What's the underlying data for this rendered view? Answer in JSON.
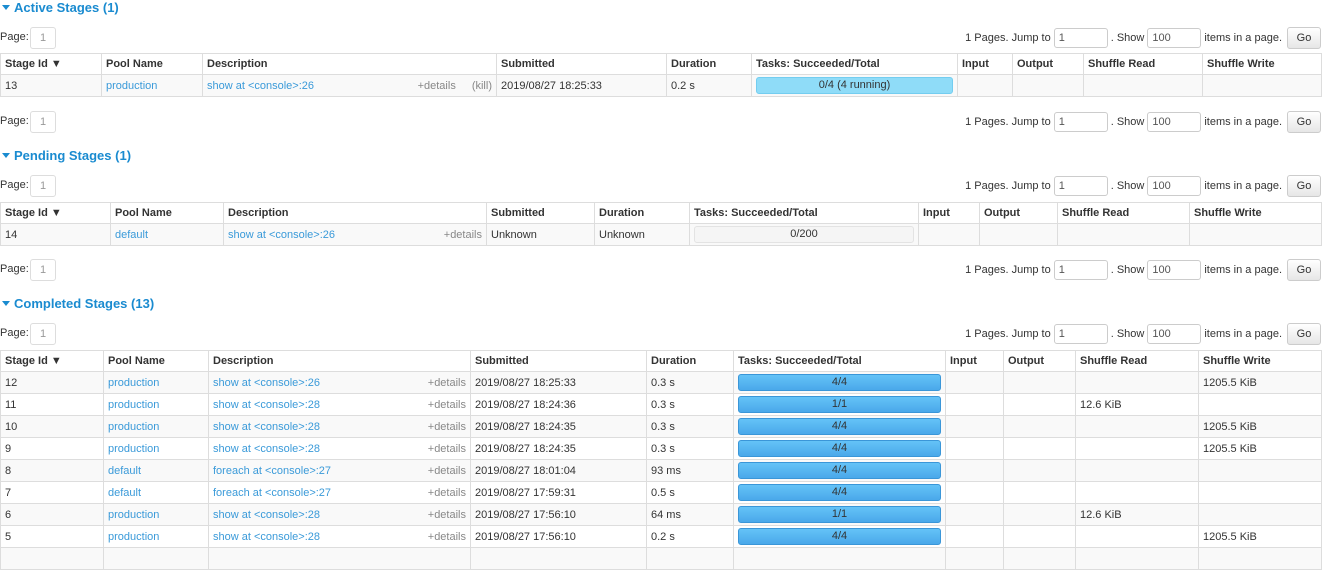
{
  "colors": {
    "accent": "#1a8bd0",
    "link": "#3a9ad9",
    "bar_complete": "#4aa8ea",
    "bar_running": "#8fdcf8"
  },
  "pager": {
    "page_label": "Page:",
    "page": "1",
    "pages_text": "1 Pages. Jump to",
    "jump_value": "1",
    "show_label": ". Show",
    "show_value": "100",
    "items_label": "items in a page.",
    "go_label": "Go"
  },
  "columns": [
    "Stage Id ▼",
    "Pool Name",
    "Description",
    "Submitted",
    "Duration",
    "Tasks: Succeeded/Total",
    "Input",
    "Output",
    "Shuffle Read",
    "Shuffle Write"
  ],
  "details_label": "+details",
  "kill_label": "(kill)",
  "sections": [
    {
      "title": "Active Stages (1)",
      "rows": [
        {
          "id": "13",
          "pool": "production",
          "desc": "show at <console>:26",
          "kill": true,
          "submitted": "2019/08/27 18:25:33",
          "duration": "0.2 s",
          "tasks": "0/4 (4 running)",
          "progress": 0,
          "status": "running",
          "input": "",
          "output": "",
          "shuffle_read": "",
          "shuffle_write": ""
        }
      ]
    },
    {
      "title": "Pending Stages (1)",
      "rows": [
        {
          "id": "14",
          "pool": "default",
          "desc": "show at <console>:26",
          "submitted": "Unknown",
          "duration": "Unknown",
          "tasks": "0/200",
          "progress": 0,
          "status": "pending",
          "input": "",
          "output": "",
          "shuffle_read": "",
          "shuffle_write": ""
        }
      ]
    },
    {
      "title": "Completed Stages (13)",
      "rows": [
        {
          "id": "12",
          "pool": "production",
          "desc": "show at <console>:26",
          "submitted": "2019/08/27 18:25:33",
          "duration": "0.3 s",
          "tasks": "4/4",
          "progress": 1,
          "status": "complete",
          "input": "",
          "output": "",
          "shuffle_read": "",
          "shuffle_write": "1205.5 KiB"
        },
        {
          "id": "11",
          "pool": "production",
          "desc": "show at <console>:28",
          "submitted": "2019/08/27 18:24:36",
          "duration": "0.3 s",
          "tasks": "1/1",
          "progress": 1,
          "status": "complete",
          "input": "",
          "output": "",
          "shuffle_read": "12.6 KiB",
          "shuffle_write": ""
        },
        {
          "id": "10",
          "pool": "production",
          "desc": "show at <console>:28",
          "submitted": "2019/08/27 18:24:35",
          "duration": "0.3 s",
          "tasks": "4/4",
          "progress": 1,
          "status": "complete",
          "input": "",
          "output": "",
          "shuffle_read": "",
          "shuffle_write": "1205.5 KiB"
        },
        {
          "id": "9",
          "pool": "production",
          "desc": "show at <console>:28",
          "submitted": "2019/08/27 18:24:35",
          "duration": "0.3 s",
          "tasks": "4/4",
          "progress": 1,
          "status": "complete",
          "input": "",
          "output": "",
          "shuffle_read": "",
          "shuffle_write": "1205.5 KiB"
        },
        {
          "id": "8",
          "pool": "default",
          "desc": "foreach at <console>:27",
          "submitted": "2019/08/27 18:01:04",
          "duration": "93 ms",
          "tasks": "4/4",
          "progress": 1,
          "status": "complete",
          "input": "",
          "output": "",
          "shuffle_read": "",
          "shuffle_write": ""
        },
        {
          "id": "7",
          "pool": "default",
          "desc": "foreach at <console>:27",
          "submitted": "2019/08/27 17:59:31",
          "duration": "0.5 s",
          "tasks": "4/4",
          "progress": 1,
          "status": "complete",
          "input": "",
          "output": "",
          "shuffle_read": "",
          "shuffle_write": ""
        },
        {
          "id": "6",
          "pool": "production",
          "desc": "show at <console>:28",
          "submitted": "2019/08/27 17:56:10",
          "duration": "64 ms",
          "tasks": "1/1",
          "progress": 1,
          "status": "complete",
          "input": "",
          "output": "",
          "shuffle_read": "12.6 KiB",
          "shuffle_write": ""
        },
        {
          "id": "5",
          "pool": "production",
          "desc": "show at <console>:28",
          "submitted": "2019/08/27 17:56:10",
          "duration": "0.2 s",
          "tasks": "4/4",
          "progress": 1,
          "status": "complete",
          "input": "",
          "output": "",
          "shuffle_read": "",
          "shuffle_write": "1205.5 KiB"
        },
        {
          "id": "",
          "pool": "",
          "desc": "",
          "submitted": "",
          "duration": "",
          "tasks": "",
          "progress": null,
          "status": "",
          "input": "",
          "output": "",
          "shuffle_read": "",
          "shuffle_write": ""
        }
      ]
    }
  ]
}
